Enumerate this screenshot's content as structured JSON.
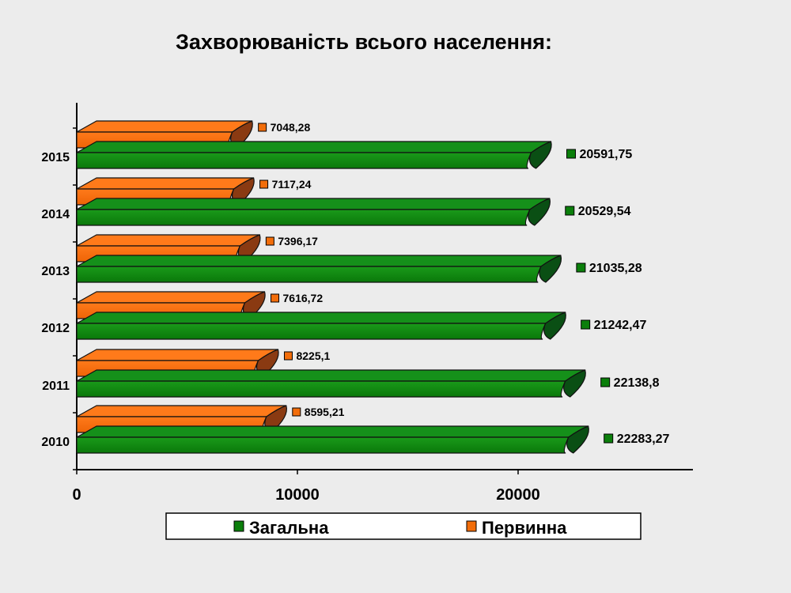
{
  "chart_data": {
    "type": "bar",
    "orientation": "horizontal",
    "title": "Захворюваність всього населення:",
    "categories": [
      "2010",
      "2011",
      "2012",
      "2013",
      "2014",
      "2015"
    ],
    "series": [
      {
        "name": "Загальна",
        "color": "#0b7f0b",
        "values": [
          22283.27,
          22138.8,
          21242.47,
          21035.28,
          20529.54,
          20591.75
        ],
        "labels": [
          "22283,27",
          "22138,8",
          "21242,47",
          "21035,28",
          "20529,54",
          "20591,75"
        ]
      },
      {
        "name": "Первинна",
        "color": "#f26d0a",
        "values": [
          8595.21,
          8225.1,
          7616.72,
          7396.17,
          7117.24,
          7048.28
        ],
        "labels": [
          "8595,21",
          "8225,1",
          "7616,72",
          "7396,17",
          "7117,24",
          "7048,28"
        ]
      }
    ],
    "xlim": [
      0,
      28000
    ],
    "xticks": [
      "0",
      "10000",
      "20000"
    ],
    "legend_position": "bottom",
    "grid": false
  }
}
